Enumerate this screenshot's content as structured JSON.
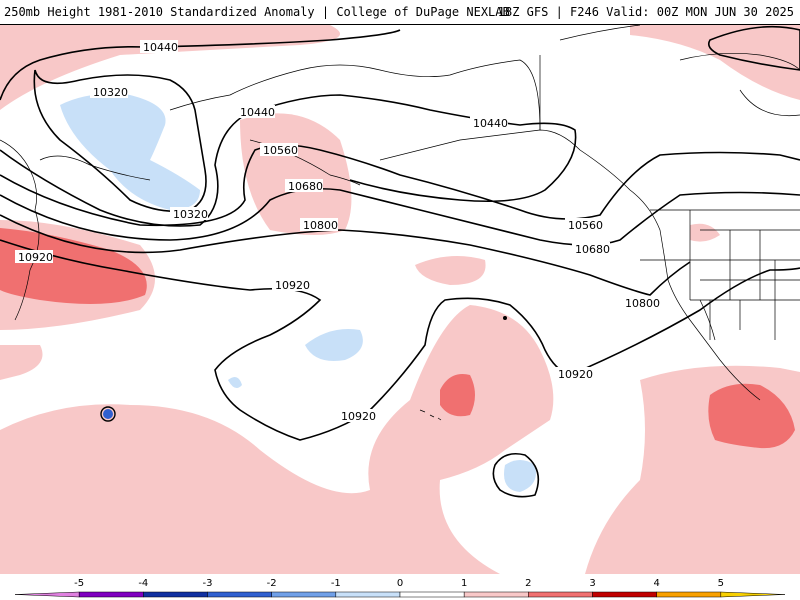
{
  "header": {
    "title_left": "250mb Height 1981-2010 Standardized Anomaly | College of DuPage NEXLAB",
    "title_right": "18Z GFS | F246 Valid: 00Z MON JUN 30 2025"
  },
  "contour_labels": {
    "c1": "10440",
    "c2": "10320",
    "c3": "10440",
    "c4": "10560",
    "c5": "10680",
    "c6": "10800",
    "c7": "10920",
    "c8": "10320",
    "c9": "10440",
    "c10": "10560",
    "c11": "10680",
    "c12": "10800",
    "c13": "10920",
    "c14": "10920",
    "c15": "10920"
  },
  "legend": {
    "ticks": [
      "-5",
      "-4",
      "-3",
      "-2",
      "-1",
      "0",
      "1",
      "2",
      "3",
      "4",
      "5"
    ],
    "colors": [
      "#e080e0",
      "#8000c0",
      "#1030a0",
      "#3060d0",
      "#70a0e8",
      "#c8e0f8",
      "#ffffff",
      "#f8c8c8",
      "#f07070",
      "#c00000",
      "#f8a000",
      "#f8d000"
    ]
  },
  "colors": {
    "positive_light": "#f8c8c8",
    "positive_strong": "#f07070",
    "negative_light": "#c8e0f8",
    "negative_strong": "#3060d0",
    "coastline": "#000000"
  }
}
